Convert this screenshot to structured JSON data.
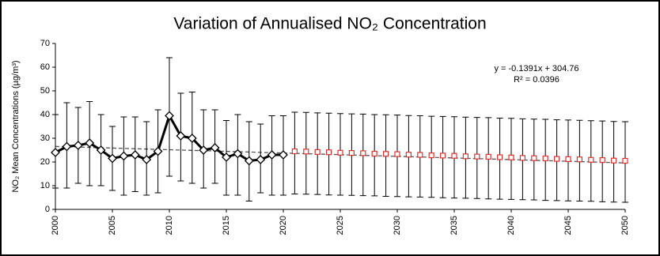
{
  "chart_data": {
    "type": "line",
    "title": "Variation of Annualised NO₂ Concentration",
    "y_label": "NO₂ Mean Concentrations (µg/m³)",
    "xlim": [
      2000,
      2050
    ],
    "xticks": [
      2000,
      2005,
      2010,
      2015,
      2020,
      2025,
      2030,
      2035,
      2040,
      2045,
      2050
    ],
    "ylim": [
      0,
      70
    ],
    "yticks": [
      0,
      10,
      20,
      30,
      40,
      50,
      60,
      70
    ],
    "grid": false,
    "trendline": {
      "label": "y = -0.1391x + 304.76",
      "slope": -0.1391,
      "intercept": 304.76,
      "r2_label": "R² = 0.0396",
      "color": "#555555"
    },
    "series": [
      {
        "color": "#000000",
        "marker": "diamond",
        "line": true,
        "x": [
          2000,
          2001,
          2002,
          2003,
          2004,
          2005,
          2006,
          2007,
          2008,
          2009,
          2010,
          2011,
          2012,
          2013,
          2014,
          2015,
          2016,
          2017,
          2018,
          2019,
          2020
        ],
        "values": [
          24,
          26.5,
          27,
          28,
          25,
          21.5,
          22.5,
          23,
          21,
          24.5,
          39.5,
          31,
          30,
          25,
          26,
          22,
          23.5,
          20.5,
          21,
          23,
          23
        ],
        "error_low": [
          9,
          9,
          11,
          10,
          10,
          8,
          6,
          7.5,
          6,
          7,
          14,
          12,
          11,
          9,
          11,
          6,
          6,
          3.5,
          7,
          6,
          6
        ],
        "error_high": [
          40,
          45,
          43,
          45.5,
          40,
          35,
          39,
          39,
          37,
          42,
          64,
          49,
          49.5,
          42,
          42,
          37.5,
          40,
          37,
          36,
          39.5,
          39.5
        ]
      },
      {
        "color": "#e03030",
        "marker": "square",
        "line": false,
        "x": [
          2021,
          2022,
          2023,
          2024,
          2025,
          2026,
          2027,
          2028,
          2029,
          2030,
          2031,
          2032,
          2033,
          2034,
          2035,
          2036,
          2037,
          2038,
          2039,
          2040,
          2041,
          2042,
          2043,
          2044,
          2045,
          2046,
          2047,
          2048,
          2049,
          2050
        ],
        "values": [
          24.5,
          24.4,
          24.2,
          24.1,
          23.9,
          23.8,
          23.7,
          23.5,
          23.4,
          23.3,
          23.1,
          23.0,
          22.8,
          22.7,
          22.6,
          22.4,
          22.3,
          22.2,
          22.0,
          21.9,
          21.7,
          21.6,
          21.5,
          21.3,
          21.2,
          21.1,
          20.9,
          20.8,
          20.6,
          20.5
        ],
        "error_low": [
          6.5,
          6.4,
          6.3,
          6.1,
          6.0,
          5.9,
          5.8,
          5.7,
          5.5,
          5.4,
          5.3,
          5.2,
          5.1,
          4.9,
          4.8,
          4.7,
          4.6,
          4.4,
          4.3,
          4.2,
          4.1,
          4.0,
          3.8,
          3.7,
          3.6,
          3.5,
          3.4,
          3.2,
          3.1,
          3.0
        ],
        "error_high": [
          41,
          40.9,
          40.7,
          40.6,
          40.4,
          40.3,
          40.2,
          40.0,
          39.9,
          39.8,
          39.6,
          39.5,
          39.3,
          39.2,
          39.1,
          38.9,
          38.8,
          38.7,
          38.5,
          38.4,
          38.2,
          38.1,
          38.0,
          37.8,
          37.7,
          37.6,
          37.4,
          37.3,
          37.1,
          37.0
        ]
      }
    ]
  }
}
